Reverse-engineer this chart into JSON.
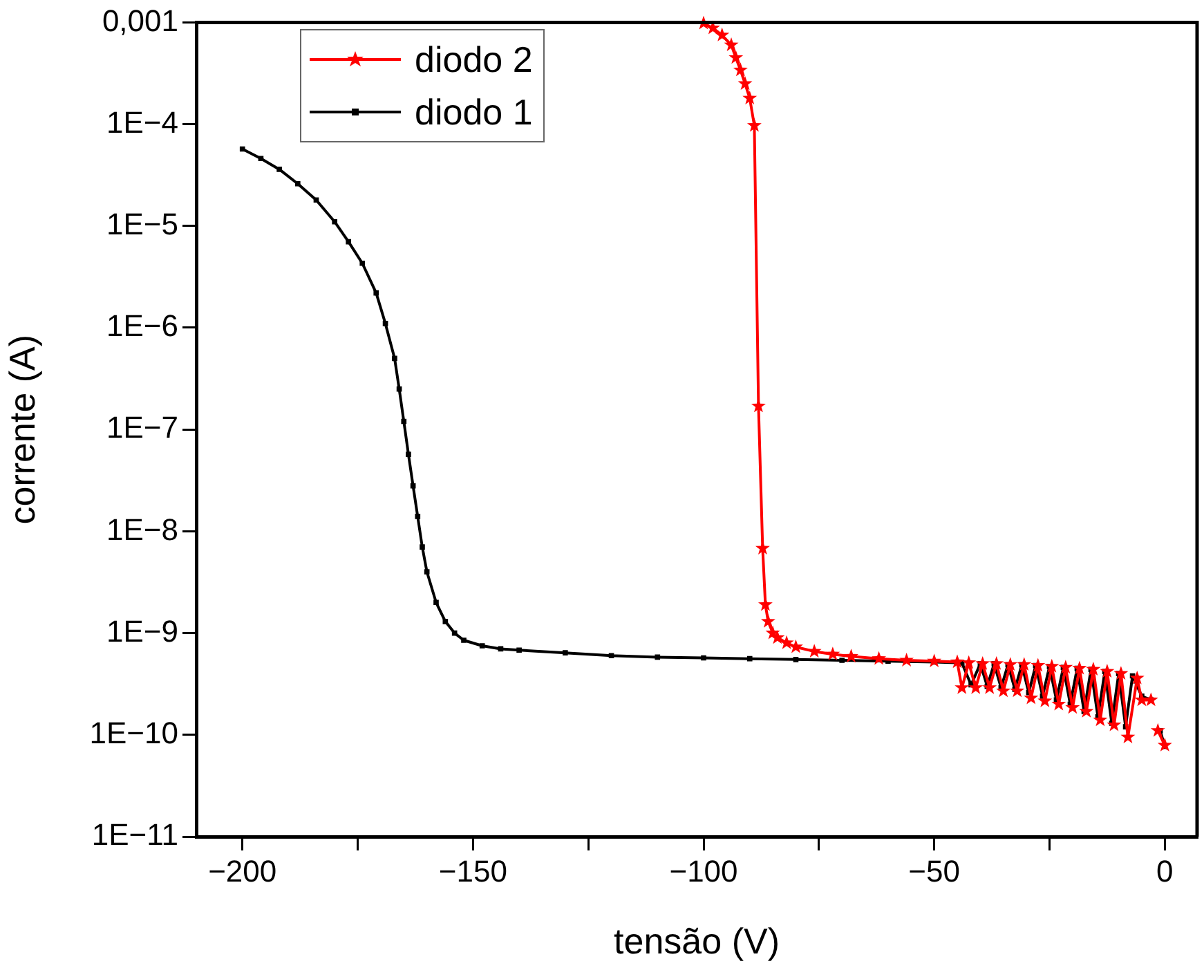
{
  "chart_data": {
    "type": "line",
    "xlabel": "tensão (V)",
    "ylabel": "corrente (A)",
    "log": "y",
    "grid": false,
    "legend": "top left",
    "line_style": "solid",
    "xlim": [
      -210,
      7
    ],
    "ylim": [
      1e-11,
      0.001
    ],
    "xticks": [
      {
        "value": -200,
        "label": "−200"
      },
      {
        "value": -175,
        "label": null
      },
      {
        "value": -150,
        "label": "−150"
      },
      {
        "value": -125,
        "label": null
      },
      {
        "value": -100,
        "label": "−100"
      },
      {
        "value": -75,
        "label": null
      },
      {
        "value": -50,
        "label": "−50"
      },
      {
        "value": -25,
        "label": null
      },
      0
    ],
    "yticks": [
      {
        "value": 1e-11,
        "label": "1E−11"
      },
      {
        "value": 1e-10,
        "label": "1E−10"
      },
      {
        "value": 1e-09,
        "label": "1E−9"
      },
      {
        "value": 1e-08,
        "label": "1E−8"
      },
      {
        "value": 1e-07,
        "label": "1E−7"
      },
      {
        "value": 1e-06,
        "label": "1E−6"
      },
      {
        "value": 1e-05,
        "label": "1E−5"
      },
      {
        "value": 0.0001,
        "label": "1E−4"
      },
      {
        "value": 0.001,
        "label": "0,001"
      }
    ],
    "series": [
      {
        "name": "diodo 2",
        "color": "#ff0000",
        "marker": "star",
        "x": [
          -100,
          -98,
          -96,
          -94,
          -93,
          -92,
          -91,
          -90,
          -89,
          -88.1,
          -87.2,
          -86.6,
          -86,
          -85,
          -84,
          -82,
          -80,
          -76,
          -72,
          -68,
          -62,
          -56,
          -50,
          -45,
          -44,
          -42.5,
          -41,
          -39.5,
          -38,
          -36.5,
          -35,
          -33.5,
          -32,
          -30.5,
          -29,
          -27.5,
          -26,
          -24.5,
          -23,
          -21.5,
          -20,
          -18.5,
          -17,
          -15.5,
          -14,
          -12.5,
          -11,
          -9.5,
          -8,
          -6,
          -5,
          -3,
          -2,
          -1.5,
          0
        ],
        "values": [
          0.00098,
          0.00088,
          0.00075,
          0.0006,
          0.00045,
          0.00034,
          0.00025,
          0.00018,
          9.7e-05,
          1.7e-07,
          6.8e-09,
          1.9e-09,
          1.3e-09,
          1e-09,
          9e-10,
          8e-10,
          7.3e-10,
          6.6e-10,
          6.2e-10,
          5.9e-10,
          5.6e-10,
          5.4e-10,
          5.3e-10,
          5.2e-10,
          2.9e-10,
          5.1e-10,
          2.9e-10,
          5e-10,
          2.9e-10,
          5e-10,
          2.7e-10,
          4.9e-10,
          2.7e-10,
          4.9e-10,
          2.3e-10,
          4.8e-10,
          2.15e-10,
          4.7e-10,
          2e-10,
          4.6e-10,
          1.85e-10,
          4.5e-10,
          1.7e-10,
          4.4e-10,
          1.4e-10,
          4.2e-10,
          1.25e-10,
          4e-10,
          9.5e-11,
          3.6e-10,
          2.2e-10,
          2.2e-10,
          null,
          1.1e-10,
          7.9e-11
        ]
      },
      {
        "name": "diodo 1",
        "color": "#000000",
        "marker": "square",
        "x": [
          -200,
          -196,
          -192,
          -188,
          -184,
          -180,
          -177,
          -174,
          -171,
          -169,
          -167,
          -166,
          -165,
          -164,
          -163,
          -162,
          -161,
          -160,
          -158,
          -156,
          -154,
          -152,
          -148,
          -144,
          -140,
          -130,
          -120,
          -110,
          -100,
          -90,
          -80,
          -70,
          -60,
          -50,
          -44,
          -42,
          -40,
          -38.5,
          -37,
          -35.5,
          -34,
          -32.5,
          -31,
          -29.5,
          -28,
          -26.5,
          -25,
          -23.5,
          -22,
          -20.5,
          -19,
          -17.5,
          -16,
          -14.5,
          -13,
          -11.5,
          -10,
          -8.5,
          -7,
          -5,
          -3,
          -2,
          -1,
          0
        ],
        "values": [
          5.7e-05,
          4.6e-05,
          3.6e-05,
          2.6e-05,
          1.8e-05,
          1.1e-05,
          7e-06,
          4.3e-06,
          2.2e-06,
          1.1e-06,
          5e-07,
          2.5e-07,
          1.2e-07,
          5.7e-08,
          2.8e-08,
          1.4e-08,
          7e-09,
          4e-09,
          2e-09,
          1.3e-09,
          1e-09,
          8.5e-10,
          7.5e-10,
          7e-10,
          6.8e-10,
          6.4e-10,
          6e-10,
          5.8e-10,
          5.7e-10,
          5.6e-10,
          5.5e-10,
          5.4e-10,
          5.3e-10,
          5.2e-10,
          5.1e-10,
          3.1e-10,
          5e-10,
          3e-10,
          5e-10,
          2.9e-10,
          4.9e-10,
          2.8e-10,
          4.9e-10,
          2.6e-10,
          4.8e-10,
          2.4e-10,
          4.7e-10,
          2.2e-10,
          4.6e-10,
          2e-10,
          4.5e-10,
          1.7e-10,
          4.4e-10,
          1.5e-10,
          4.2e-10,
          1.3e-10,
          4e-10,
          1.2e-10,
          3.8e-10,
          2.4e-10,
          2.2e-10,
          null,
          1.1e-10,
          7.7e-11
        ]
      }
    ]
  }
}
